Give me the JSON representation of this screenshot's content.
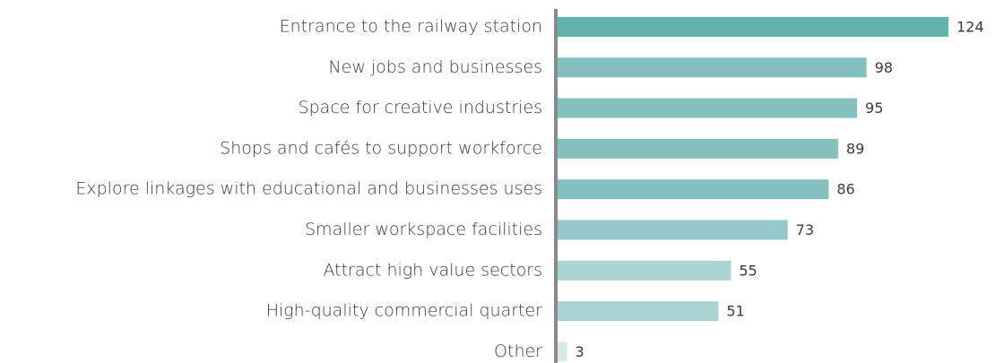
{
  "chart_data": {
    "type": "bar",
    "orientation": "horizontal",
    "categories": [
      "Entrance to the railway station",
      "New jobs and businesses",
      "Space for creative industries",
      "Shops and cafés to support workforce",
      "Explore linkages with educational and businesses uses",
      "Smaller workspace facilities",
      "Attract high value sectors",
      "High-quality commercial quarter",
      "Other"
    ],
    "values": [
      124,
      98,
      95,
      89,
      86,
      73,
      55,
      51,
      3
    ],
    "colors": [
      "#63b2b2",
      "#85c0c1",
      "#85c0c1",
      "#85c0c1",
      "#85c0c1",
      "#97c8c9",
      "#aad3d3",
      "#aad3d3",
      "#d5e9e9"
    ]
  }
}
